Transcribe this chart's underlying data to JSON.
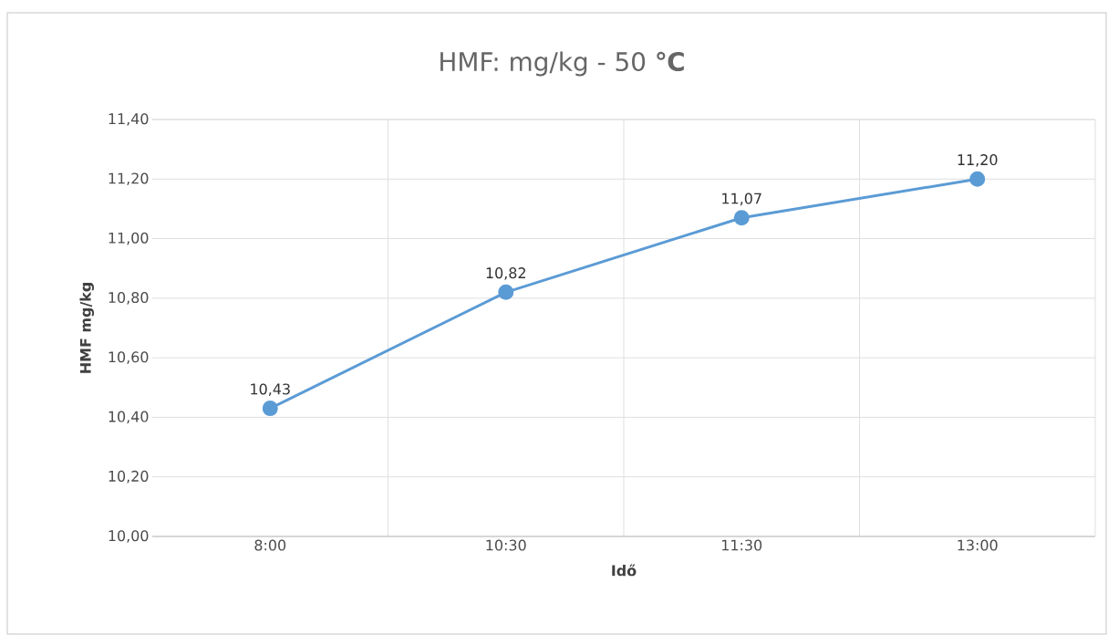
{
  "chart_data": {
    "type": "line",
    "title": "HMF: mg/kg - 50 **℃**",
    "xlabel": "Idő",
    "ylabel": "HMF mg/kg",
    "categories": [
      "8:00",
      "10:30",
      "11:30",
      "13:00"
    ],
    "series": [
      {
        "color": "#5b9bd5",
        "values": [
          10.43,
          10.82,
          11.07,
          11.2
        ],
        "value_labels": [
          "10,43",
          "10,82",
          "11,07",
          "11,20"
        ]
      }
    ],
    "ylim": [
      10.0,
      11.4
    ],
    "yticks": [
      {
        "value": 10.0,
        "label": "10,00"
      },
      {
        "value": 10.2,
        "label": "10,20"
      },
      {
        "value": 10.4,
        "label": "10,40"
      },
      {
        "value": 10.6,
        "label": "10,60"
      },
      {
        "value": 10.8,
        "label": "10,80"
      },
      {
        "value": 11.0,
        "label": "11,00"
      },
      {
        "value": 11.2,
        "label": "11,20"
      },
      {
        "value": 11.4,
        "label": "11,40"
      }
    ],
    "grid": true,
    "marker": "circle",
    "line_style": "solid"
  }
}
